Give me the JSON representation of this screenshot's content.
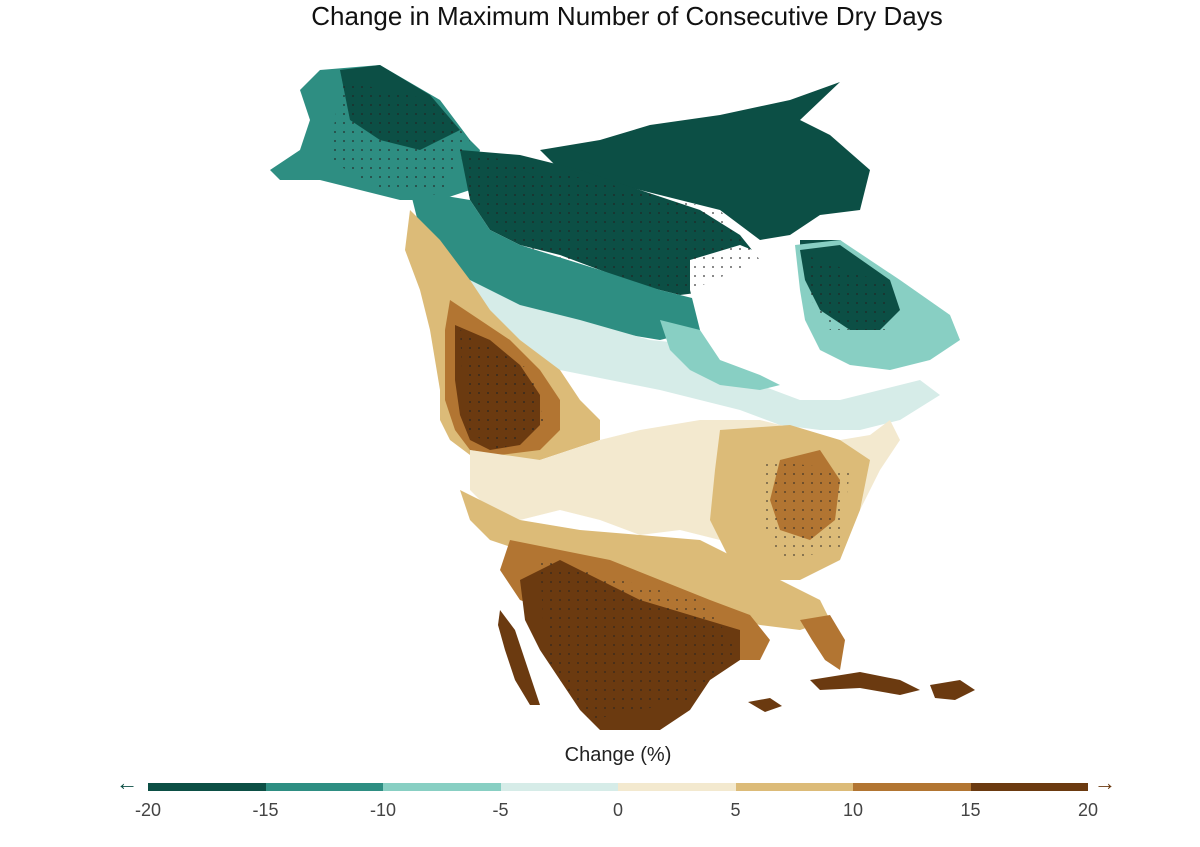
{
  "title": "Change in Maximum Number of Consecutive Dry Days",
  "legend": {
    "title": "Change (%)",
    "ticks": [
      "-20",
      "-15",
      "-10",
      "-5",
      "0",
      "5",
      "10",
      "15",
      "20"
    ],
    "colors": [
      "#0c4f45",
      "#2e8e82",
      "#88cfc3",
      "#d6ece8",
      "#f3e9cf",
      "#dcbb78",
      "#b27532",
      "#6b3a10"
    ],
    "left_arrow_icon": "arrow-left-icon",
    "right_arrow_icon": "arrow-right-icon"
  },
  "map": {
    "region": "North America",
    "stippling": "hatched dots indicate significant change"
  }
}
